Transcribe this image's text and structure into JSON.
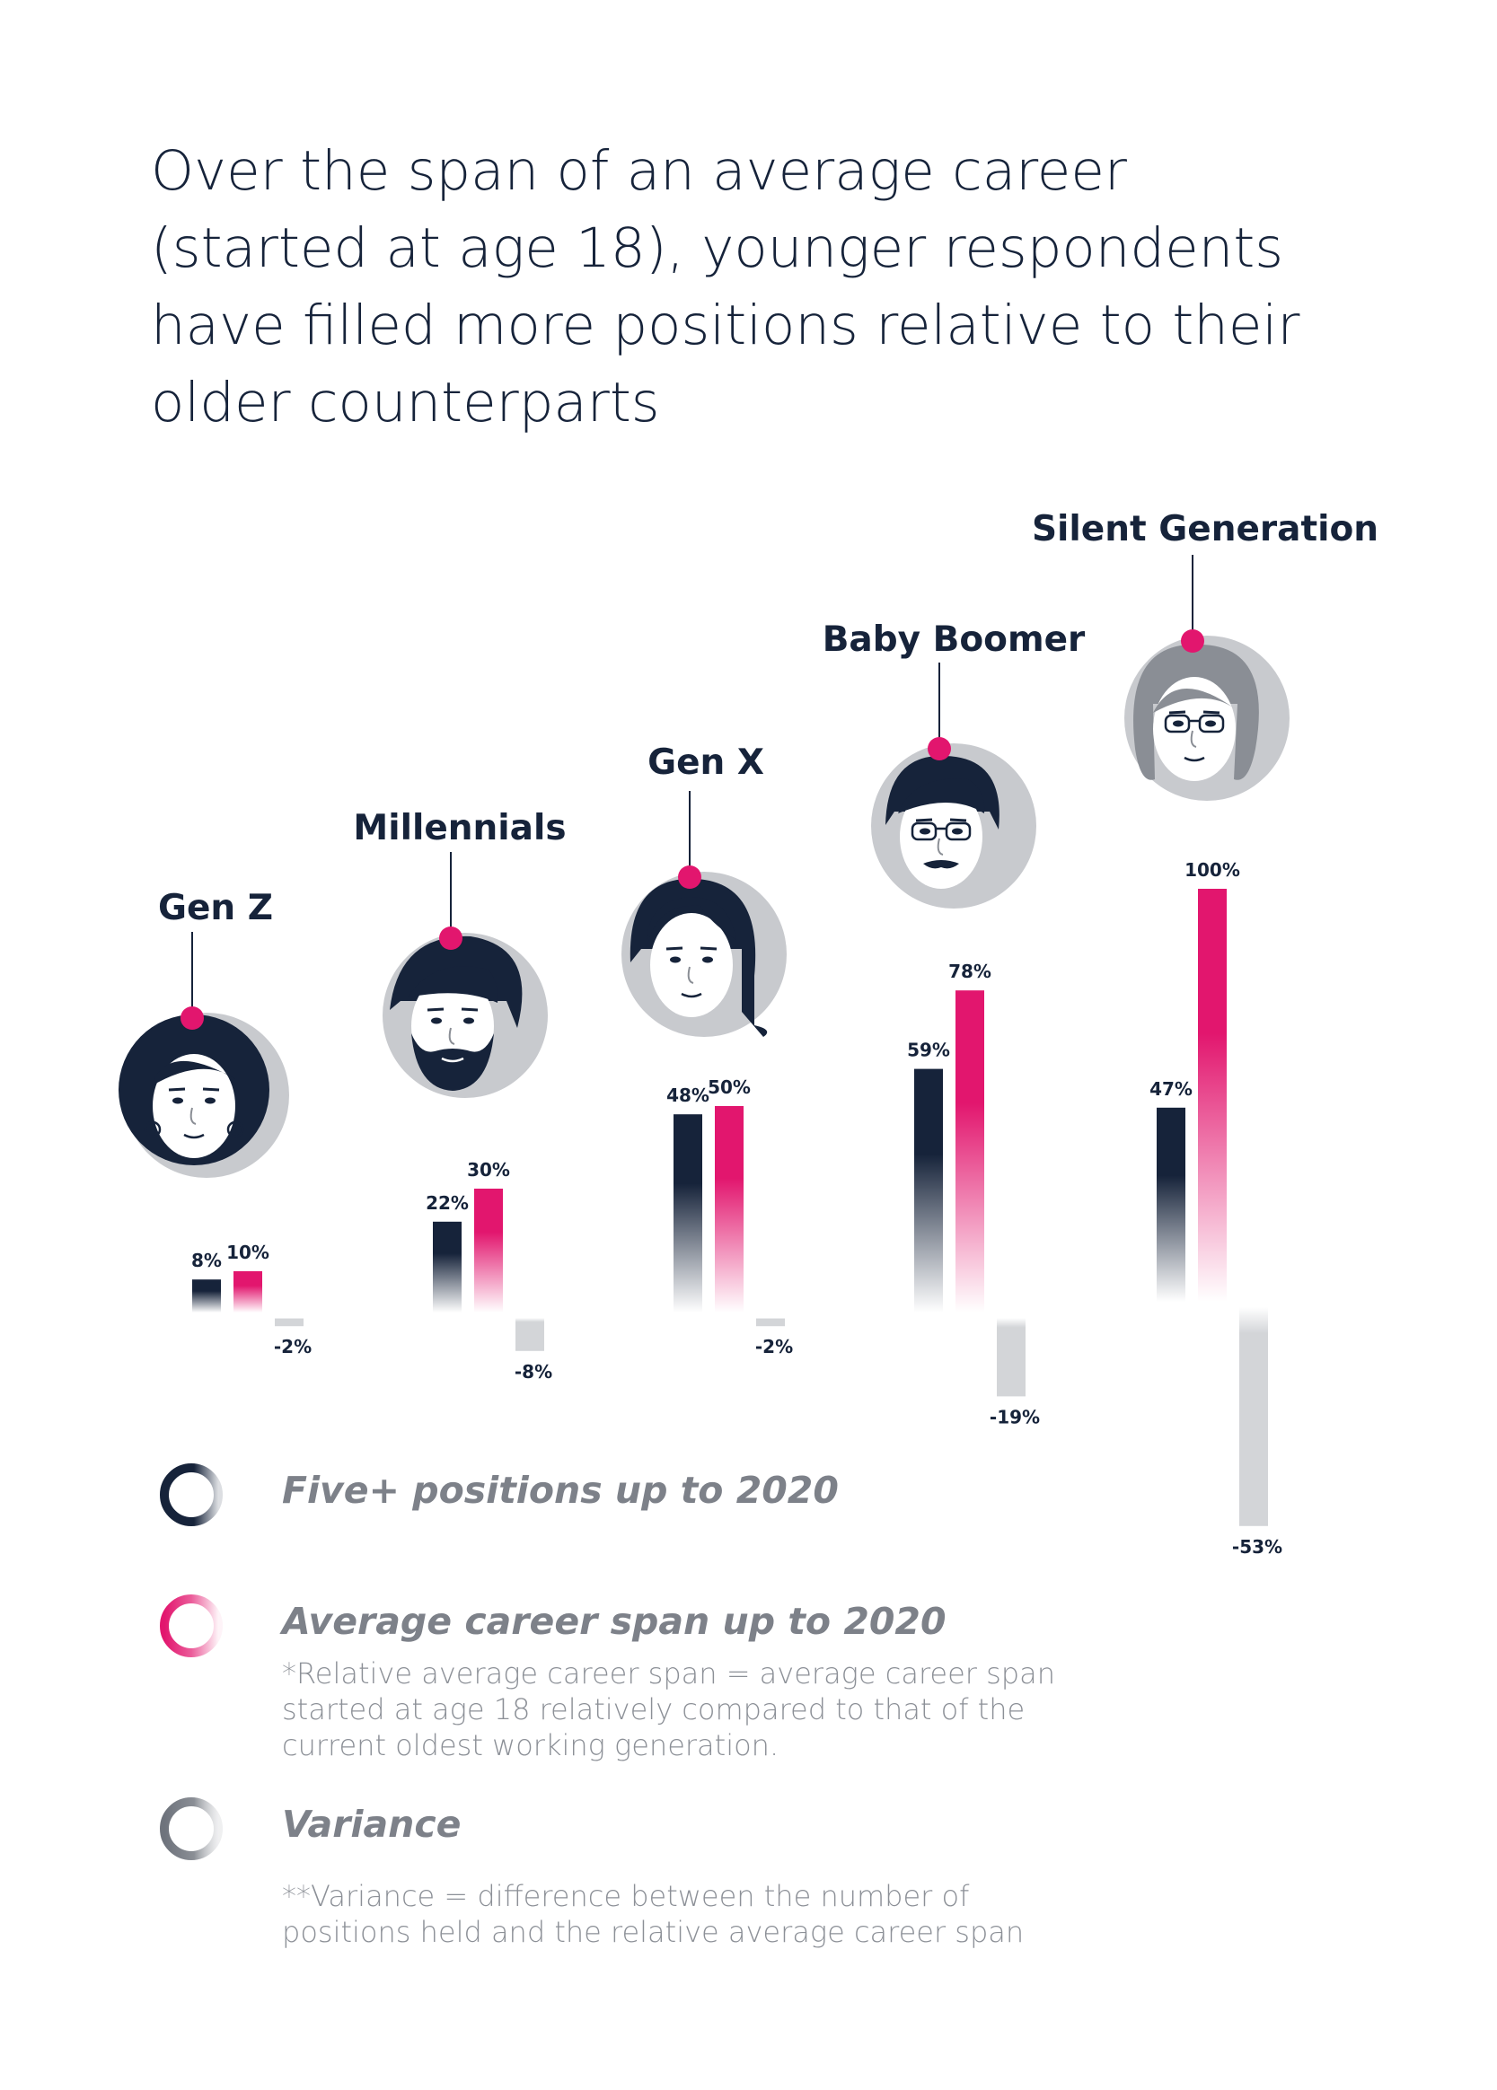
{
  "title": "Over the span of an average career (started at age 18), younger respondents have filled more positions relative to their older counterparts",
  "colors": {
    "dark": "#16233a",
    "pink": "#e2166e",
    "grey": "#d3d5d8",
    "avatar_bg": "#c8cace"
  },
  "chart_data": {
    "type": "bar",
    "categories": [
      "Gen Z",
      "Millennials",
      "Gen X",
      "Baby Boomer",
      "Silent Generation"
    ],
    "series": [
      {
        "name": "Five+ positions up to 2020",
        "values": [
          8,
          22,
          48,
          59,
          47
        ],
        "labels": [
          "8%",
          "22%",
          "48%",
          "59%",
          "47%"
        ]
      },
      {
        "name": "Average career span up to 2020",
        "values": [
          10,
          30,
          50,
          78,
          100
        ],
        "labels": [
          "10%",
          "30%",
          "50%",
          "78%",
          "100%"
        ]
      },
      {
        "name": "Variance",
        "values": [
          -2,
          -8,
          -2,
          -19,
          -53
        ],
        "labels": [
          "-2%",
          "-8%",
          "-2%",
          "-19%",
          "-53%"
        ]
      }
    ],
    "avatar_icons": [
      "curly-hair-woman-icon",
      "bearded-man-icon",
      "young-woman-icon",
      "mustache-man-glasses-icon",
      "older-woman-glasses-icon"
    ]
  },
  "legend": [
    {
      "icon": "dark-ring-icon",
      "title": "Five+ positions up to 2020",
      "note": ""
    },
    {
      "icon": "pink-ring-icon",
      "title": "Average career span up to 2020",
      "note": "*Relative average career span = average career span started at age 18 relatively compared to that   of the current oldest working generation."
    },
    {
      "icon": "grey-ring-icon",
      "title": "Variance",
      "note": "**Variance = difference between the number of positions held and the relative average career span"
    }
  ]
}
